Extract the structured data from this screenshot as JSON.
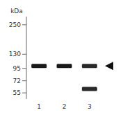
{
  "chart_data": {
    "type": "blot",
    "y_label": "kDa",
    "categories": [
      "1",
      "2",
      "3"
    ],
    "log": "y",
    "ylim": [
      48,
      300
    ],
    "yticks": [
      55,
      72,
      95,
      130,
      250
    ],
    "grid": false,
    "bands": [
      {
        "lane": "1",
        "mw": 100,
        "color": "#1a1a1a"
      },
      {
        "lane": "2",
        "mw": 100,
        "color": "#1a1a1a"
      },
      {
        "lane": "3",
        "mw": 100,
        "color": "#2a2a2a"
      },
      {
        "lane": "3",
        "mw": 60,
        "color": "#2a2a2a"
      }
    ],
    "arrow": 100
  }
}
